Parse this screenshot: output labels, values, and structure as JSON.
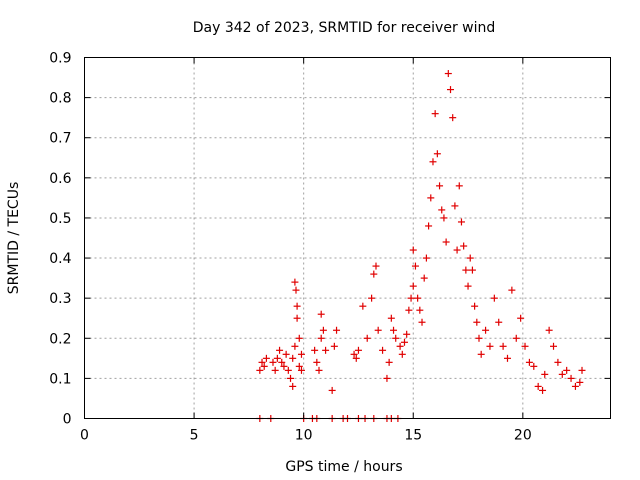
{
  "chart_data": {
    "type": "scatter",
    "title": "Day 342 of 2023, SRMTID for receiver wind",
    "xlabel": "GPS time / hours",
    "ylabel": "SRMTID / TECUs",
    "xlim": [
      0,
      24
    ],
    "ylim": [
      0,
      0.9
    ],
    "xticks": [
      0,
      5,
      10,
      15,
      20
    ],
    "xtick_labels": [
      "0",
      "5",
      "10",
      "15",
      "20"
    ],
    "yticks": [
      0,
      0.1,
      0.2,
      0.3,
      0.4,
      0.5,
      0.6,
      0.7,
      0.8,
      0.9
    ],
    "ytick_labels": [
      "0",
      "0.1",
      "0.2",
      "0.3",
      "0.4",
      "0.5",
      "0.6",
      "0.7",
      "0.8",
      "0.9"
    ],
    "grid": true,
    "marker": "+",
    "series": [
      {
        "name": "SRMTID",
        "color": "#e00000",
        "points": [
          [
            8.0,
            0.12
          ],
          [
            8.1,
            0.14
          ],
          [
            8.2,
            0.13
          ],
          [
            8.3,
            0.15
          ],
          [
            8.6,
            0.14
          ],
          [
            8.7,
            0.12
          ],
          [
            8.8,
            0.15
          ],
          [
            8.9,
            0.17
          ],
          [
            9.0,
            0.14
          ],
          [
            9.1,
            0.13
          ],
          [
            9.2,
            0.16
          ],
          [
            9.3,
            0.12
          ],
          [
            9.4,
            0.1
          ],
          [
            9.5,
            0.08
          ],
          [
            9.5,
            0.15
          ],
          [
            9.6,
            0.18
          ],
          [
            9.6,
            0.34
          ],
          [
            9.65,
            0.32
          ],
          [
            9.7,
            0.28
          ],
          [
            9.7,
            0.25
          ],
          [
            9.8,
            0.2
          ],
          [
            9.8,
            0.13
          ],
          [
            9.9,
            0.12
          ],
          [
            9.9,
            0.16
          ],
          [
            10.5,
            0.17
          ],
          [
            10.6,
            0.14
          ],
          [
            10.7,
            0.12
          ],
          [
            10.8,
            0.2
          ],
          [
            10.8,
            0.26
          ],
          [
            10.9,
            0.22
          ],
          [
            11.0,
            0.17
          ],
          [
            11.3,
            0.07
          ],
          [
            11.4,
            0.18
          ],
          [
            11.5,
            0.22
          ],
          [
            12.3,
            0.16
          ],
          [
            12.4,
            0.15
          ],
          [
            12.5,
            0.17
          ],
          [
            12.7,
            0.28
          ],
          [
            12.9,
            0.2
          ],
          [
            13.1,
            0.3
          ],
          [
            13.2,
            0.36
          ],
          [
            13.3,
            0.38
          ],
          [
            13.4,
            0.22
          ],
          [
            13.6,
            0.17
          ],
          [
            13.8,
            0.1
          ],
          [
            13.9,
            0.14
          ],
          [
            14.0,
            0.25
          ],
          [
            14.1,
            0.22
          ],
          [
            14.2,
            0.2
          ],
          [
            14.4,
            0.18
          ],
          [
            14.5,
            0.16
          ],
          [
            14.6,
            0.19
          ],
          [
            14.7,
            0.21
          ],
          [
            14.8,
            0.27
          ],
          [
            14.9,
            0.3
          ],
          [
            15.0,
            0.33
          ],
          [
            15.0,
            0.42
          ],
          [
            15.1,
            0.38
          ],
          [
            15.2,
            0.3
          ],
          [
            15.3,
            0.27
          ],
          [
            15.4,
            0.24
          ],
          [
            15.5,
            0.35
          ],
          [
            15.6,
            0.4
          ],
          [
            15.7,
            0.48
          ],
          [
            15.8,
            0.55
          ],
          [
            15.9,
            0.64
          ],
          [
            16.0,
            0.76
          ],
          [
            16.1,
            0.66
          ],
          [
            16.2,
            0.58
          ],
          [
            16.3,
            0.52
          ],
          [
            16.4,
            0.5
          ],
          [
            16.5,
            0.44
          ],
          [
            16.6,
            0.86
          ],
          [
            16.7,
            0.82
          ],
          [
            16.8,
            0.75
          ],
          [
            16.9,
            0.53
          ],
          [
            17.0,
            0.42
          ],
          [
            17.1,
            0.58
          ],
          [
            17.2,
            0.49
          ],
          [
            17.3,
            0.43
          ],
          [
            17.4,
            0.37
          ],
          [
            17.5,
            0.33
          ],
          [
            17.6,
            0.4
          ],
          [
            17.7,
            0.37
          ],
          [
            17.8,
            0.28
          ],
          [
            17.9,
            0.24
          ],
          [
            18.0,
            0.2
          ],
          [
            18.1,
            0.16
          ],
          [
            18.3,
            0.22
          ],
          [
            18.5,
            0.18
          ],
          [
            18.7,
            0.3
          ],
          [
            18.9,
            0.24
          ],
          [
            19.1,
            0.18
          ],
          [
            19.3,
            0.15
          ],
          [
            19.5,
            0.32
          ],
          [
            19.7,
            0.2
          ],
          [
            19.9,
            0.25
          ],
          [
            20.1,
            0.18
          ],
          [
            20.3,
            0.14
          ],
          [
            20.5,
            0.13
          ],
          [
            20.7,
            0.08
          ],
          [
            20.9,
            0.07
          ],
          [
            21.0,
            0.11
          ],
          [
            21.2,
            0.22
          ],
          [
            21.4,
            0.18
          ],
          [
            21.6,
            0.14
          ],
          [
            21.8,
            0.11
          ],
          [
            22.0,
            0.12
          ],
          [
            22.2,
            0.1
          ],
          [
            22.4,
            0.08
          ],
          [
            22.6,
            0.09
          ],
          [
            22.7,
            0.12
          ],
          [
            8.0,
            0.0
          ],
          [
            8.5,
            0.0
          ],
          [
            10.0,
            0.0
          ],
          [
            10.4,
            0.0
          ],
          [
            10.6,
            0.0
          ],
          [
            11.3,
            0.0
          ],
          [
            11.8,
            0.0
          ],
          [
            12.0,
            0.0
          ],
          [
            12.5,
            0.0
          ],
          [
            12.8,
            0.0
          ],
          [
            13.2,
            0.0
          ],
          [
            13.8,
            0.0
          ],
          [
            14.0,
            0.0
          ],
          [
            14.3,
            0.0
          ]
        ]
      }
    ]
  }
}
